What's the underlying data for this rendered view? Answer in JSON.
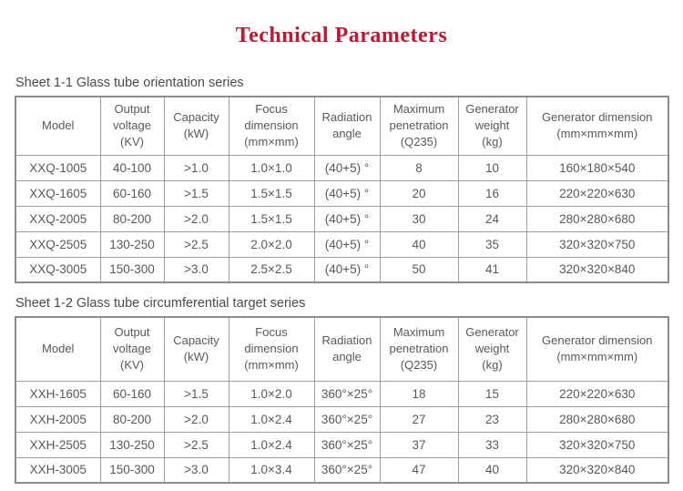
{
  "page": {
    "title": "Technical Parameters",
    "title_color": "#c0182f"
  },
  "colors": {
    "title_red": "#c0182f",
    "text_gray": "#585858",
    "border_gray": "#9e9e9e"
  },
  "tables": [
    {
      "caption": "Sheet 1-1 Glass tube orientation series",
      "headers": [
        "Model",
        "Output\nvoltage\n(KV)",
        "Capacity\n(kW)",
        "Focus\ndimension\n(mm×mm)",
        "Radiation\nangle",
        "Maximum\npenetration\n(Q235)",
        "Generator\nweight\n(kg)",
        "Generator dimension\n(mm×mm×mm)"
      ],
      "rows": [
        [
          "XXQ-1005",
          "40-100",
          ">1.0",
          "1.0×1.0",
          "(40+5) °",
          "8",
          "10",
          "160×180×540"
        ],
        [
          "XXQ-1605",
          "60-160",
          ">1.5",
          "1.5×1.5",
          "(40+5) °",
          "20",
          "16",
          "220×220×630"
        ],
        [
          "XXQ-2005",
          "80-200",
          ">2.0",
          "1.5×1.5",
          "(40+5) °",
          "30",
          "24",
          "280×280×680"
        ],
        [
          "XXQ-2505",
          "130-250",
          ">2.5",
          "2.0×2.0",
          "(40+5) °",
          "40",
          "35",
          "320×320×750"
        ],
        [
          "XXQ-3005",
          "150-300",
          ">3.0",
          "2.5×2.5",
          "(40+5) °",
          "50",
          "41",
          "320×320×840"
        ]
      ]
    },
    {
      "caption": "Sheet 1-2 Glass tube circumferential target series",
      "headers": [
        "Model",
        "Output\nvoltage\n(KV)",
        "Capacity\n(kW)",
        "Focus\ndimension\n(mm×mm)",
        "Radiation\nangle",
        "Maximum\npenetration\n(Q235)",
        "Generator\nweight\n(kg)",
        "Generator dimension\n(mm×mm×mm)"
      ],
      "rows": [
        [
          "XXH-1605",
          "60-160",
          ">1.5",
          "1.0×2.0",
          "360°×25°",
          "18",
          "15",
          "220×220×630"
        ],
        [
          "XXH-2005",
          "80-200",
          ">2.0",
          "1.0×2.4",
          "360°×25°",
          "27",
          "23",
          "280×280×680"
        ],
        [
          "XXH-2505",
          "130-250",
          ">2.5",
          "1.0×2.4",
          "360°×25°",
          "37",
          "33",
          "320×320×750"
        ],
        [
          "XXH-3005",
          "150-300",
          ">3.0",
          "1.0×3.4",
          "360°×25°",
          "47",
          "40",
          "320×320×840"
        ]
      ]
    }
  ]
}
